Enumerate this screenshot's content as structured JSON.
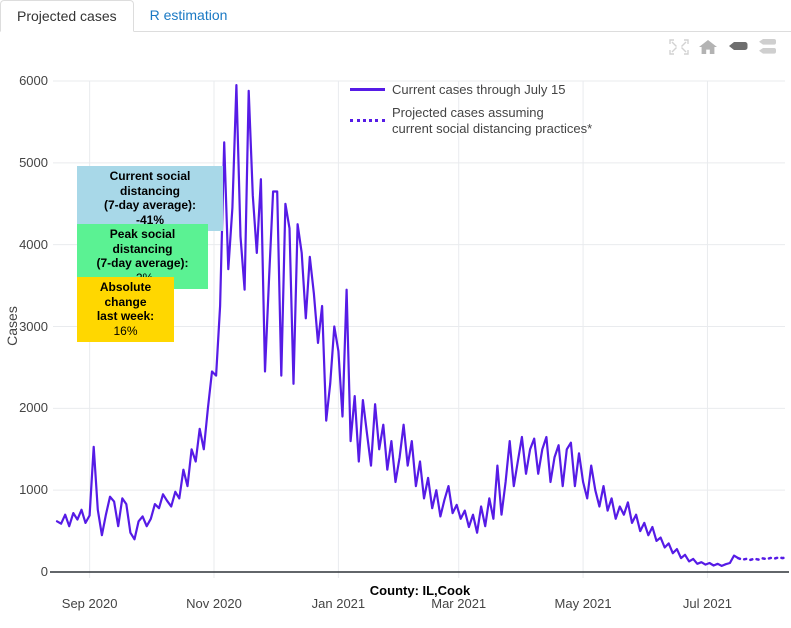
{
  "tabs": [
    {
      "label": "Projected cases",
      "active": true
    },
    {
      "label": "R estimation",
      "active": false
    }
  ],
  "modebar": {
    "icons": [
      {
        "name": "autoscale-icon",
        "active": false
      },
      {
        "name": "reset-axes-home-icon",
        "active": false
      },
      {
        "name": "hover-closest-icon",
        "active": true
      },
      {
        "name": "hover-compare-icon",
        "active": false
      }
    ]
  },
  "legend": [
    {
      "label": "Current cases through July 15",
      "style": "solid"
    },
    {
      "label": "Projected cases assuming\ncurrent social distancing practices*",
      "style": "dotted"
    }
  ],
  "annotations": [
    {
      "lines": [
        "Current social distancing",
        "(7-day average):",
        "-41%"
      ],
      "bg": "#a8d8e8"
    },
    {
      "lines": [
        "Peak social distancing",
        "(7-day average):",
        "-2%"
      ],
      "bg": "#5bf293"
    },
    {
      "lines": [
        "Absolute change",
        "last week:",
        "16%"
      ],
      "bg": "#ffd700"
    }
  ],
  "colors": {
    "line": "#561be6",
    "grid": "#e9ebee",
    "axis_line": "#2f3338",
    "tick_text": "#444444",
    "tab_link": "#1a79c4"
  },
  "chart_data": {
    "type": "line",
    "title": "",
    "xlabel": "County: IL,Cook",
    "ylabel": "Cases",
    "ylim": [
      0,
      6000
    ],
    "yticks": [
      0,
      1000,
      2000,
      3000,
      4000,
      5000,
      6000
    ],
    "grid": true,
    "legend_position": "top-center",
    "x_unit": "days since 2020-08-16",
    "xlim": [
      0,
      358
    ],
    "xticks": [
      {
        "day": 16,
        "label": "Sep 2020"
      },
      {
        "day": 77,
        "label": "Nov 2020"
      },
      {
        "day": 138,
        "label": "Jan 2021"
      },
      {
        "day": 197,
        "label": "Mar 2021"
      },
      {
        "day": 258,
        "label": "May 2021"
      },
      {
        "day": 319,
        "label": "Jul 2021"
      }
    ],
    "series": [
      {
        "name": "Current cases through July 15",
        "style": "solid",
        "color": "#561be6",
        "x": [
          0,
          2,
          4,
          6,
          8,
          10,
          12,
          14,
          16,
          18,
          20,
          22,
          24,
          26,
          28,
          30,
          32,
          34,
          36,
          38,
          40,
          42,
          44,
          46,
          48,
          50,
          52,
          54,
          56,
          58,
          60,
          62,
          64,
          66,
          68,
          70,
          72,
          74,
          76,
          78,
          80,
          82,
          84,
          86,
          88,
          90,
          92,
          94,
          96,
          98,
          100,
          102,
          104,
          106,
          108,
          110,
          112,
          114,
          116,
          118,
          120,
          122,
          124,
          126,
          128,
          130,
          132,
          134,
          136,
          138,
          140,
          142,
          144,
          146,
          148,
          150,
          152,
          154,
          156,
          158,
          160,
          162,
          164,
          166,
          168,
          170,
          172,
          174,
          176,
          178,
          180,
          182,
          184,
          186,
          188,
          190,
          192,
          194,
          196,
          198,
          200,
          202,
          204,
          206,
          208,
          210,
          212,
          214,
          216,
          218,
          220,
          222,
          224,
          226,
          228,
          230,
          232,
          234,
          236,
          238,
          240,
          242,
          244,
          246,
          248,
          250,
          252,
          254,
          256,
          258,
          260,
          262,
          264,
          266,
          268,
          270,
          272,
          274,
          276,
          278,
          280,
          282,
          284,
          286,
          288,
          290,
          292,
          294,
          296,
          298,
          300,
          302,
          304,
          306,
          308,
          310,
          312,
          314,
          316,
          318,
          320,
          322,
          324,
          326,
          328,
          330,
          332,
          334
        ],
        "y": [
          620,
          590,
          700,
          560,
          720,
          640,
          760,
          600,
          690,
          1530,
          760,
          450,
          700,
          920,
          860,
          560,
          900,
          830,
          480,
          400,
          620,
          680,
          560,
          650,
          830,
          780,
          950,
          870,
          800,
          980,
          900,
          1250,
          1050,
          1500,
          1350,
          1750,
          1500,
          2000,
          2450,
          2400,
          3250,
          5250,
          3700,
          4450,
          5950,
          4100,
          3450,
          5880,
          4600,
          3900,
          4800,
          2450,
          3600,
          4650,
          4650,
          2400,
          4500,
          4200,
          2300,
          4250,
          3900,
          3100,
          3850,
          3400,
          2800,
          3250,
          1850,
          2300,
          3000,
          2700,
          1900,
          3450,
          1600,
          2150,
          1350,
          2100,
          1700,
          1300,
          2050,
          1500,
          1800,
          1250,
          1600,
          1100,
          1400,
          1800,
          1300,
          1600,
          1050,
          1350,
          900,
          1150,
          780,
          1000,
          680,
          880,
          1050,
          720,
          820,
          650,
          750,
          550,
          700,
          480,
          800,
          560,
          900,
          650,
          1300,
          700,
          1100,
          1600,
          1050,
          1350,
          1650,
          1200,
          1500,
          1630,
          1200,
          1500,
          1650,
          1100,
          1400,
          1550,
          1050,
          1500,
          1580,
          1050,
          1450,
          1100,
          900,
          1300,
          1000,
          800,
          1050,
          750,
          900,
          650,
          800,
          700,
          850,
          600,
          700,
          500,
          600,
          450,
          550,
          380,
          420,
          300,
          350,
          230,
          280,
          170,
          210,
          130,
          160,
          100,
          120,
          90,
          110,
          80,
          100,
          75,
          95,
          110,
          200,
          170
        ]
      },
      {
        "name": "Projected cases assuming current social distancing practices*",
        "style": "dotted",
        "color": "#561be6",
        "x": [
          334,
          336,
          338,
          340,
          342,
          344,
          346,
          348,
          350,
          352,
          354,
          356,
          358
        ],
        "y": [
          170,
          150,
          160,
          148,
          162,
          152,
          168,
          158,
          172,
          165,
          178,
          170,
          185
        ]
      }
    ]
  }
}
